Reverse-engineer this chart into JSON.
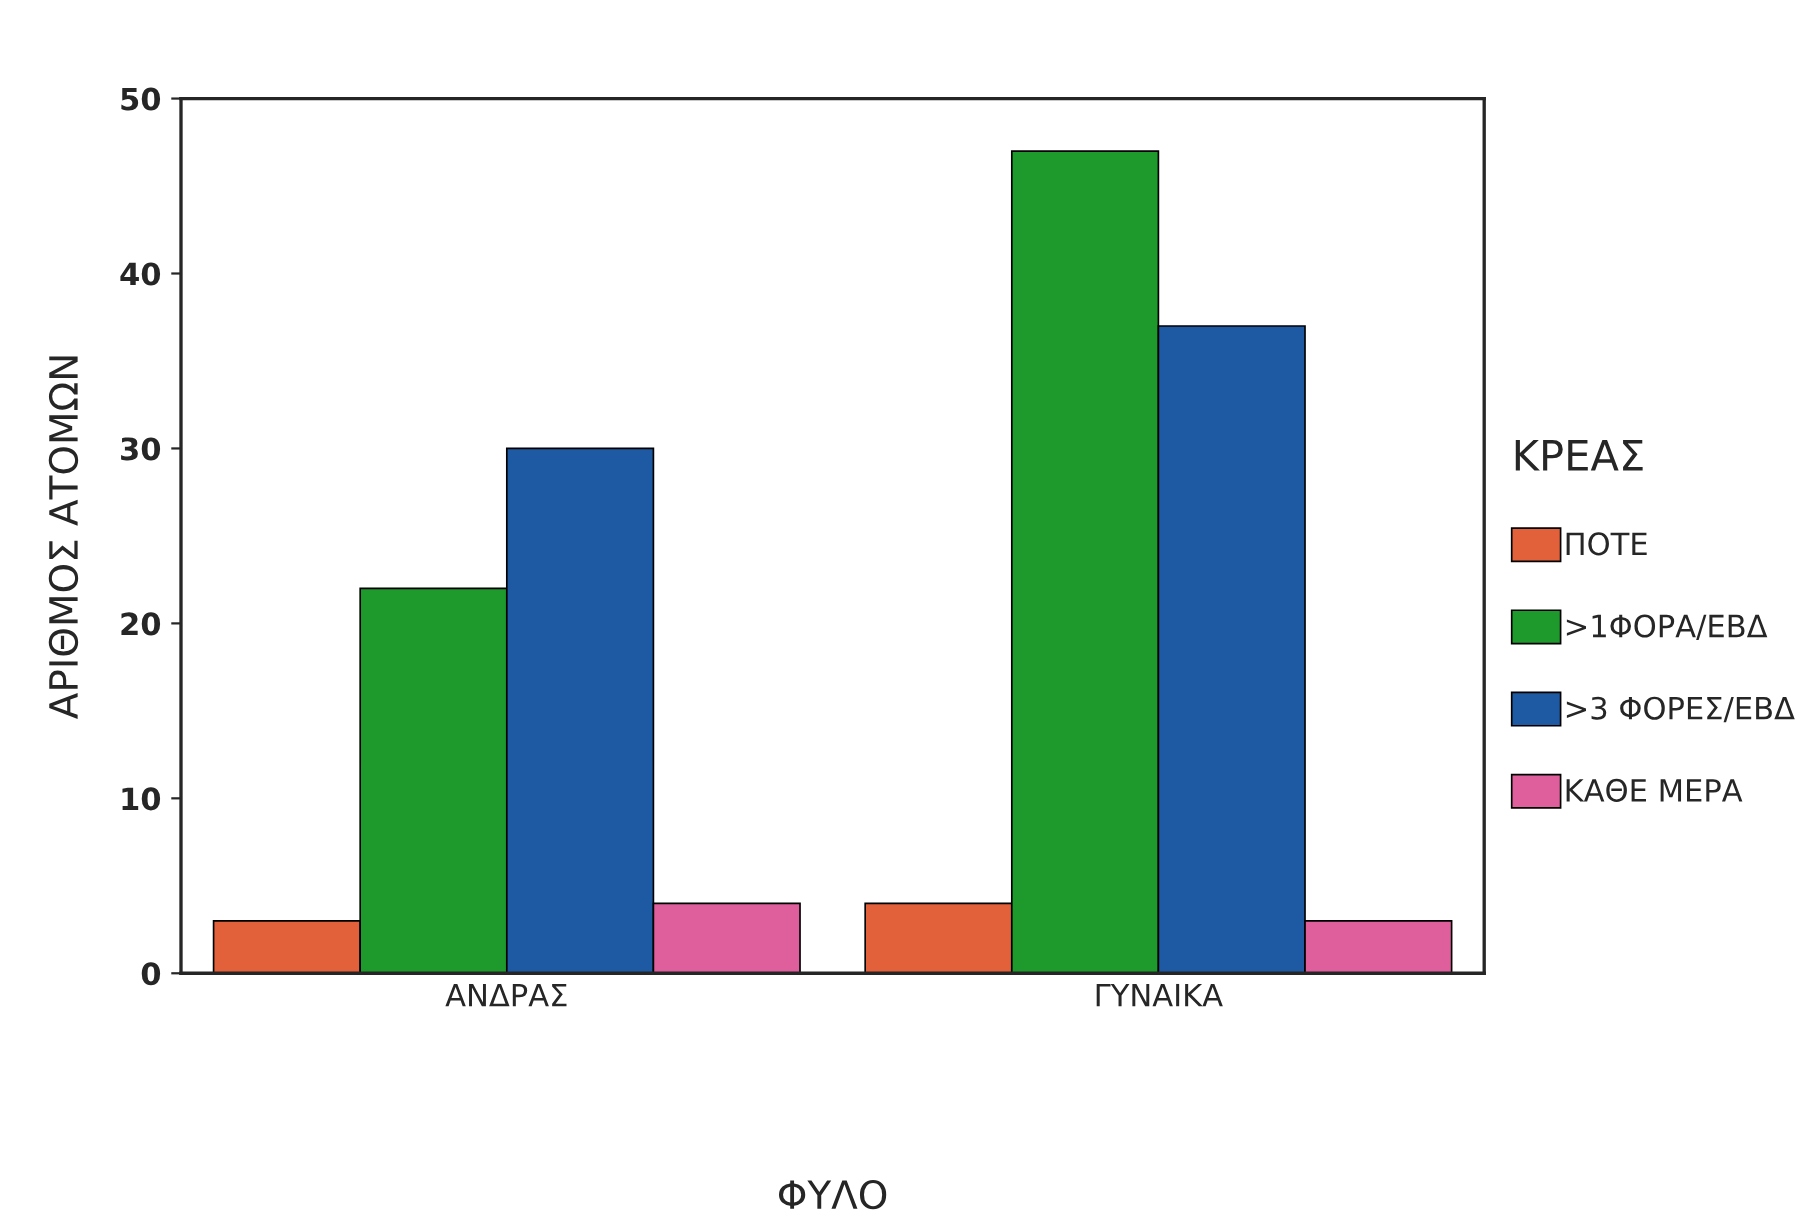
{
  "chart_data": {
    "type": "bar",
    "xlabel": "ΦΥΛΟ",
    "ylabel": "ΑΡΙΘΜΟΣ ΑΤΟΜΩΝ",
    "legend_title": "ΚΡΕΑΣ",
    "categories": [
      "ΑΝΔΡΑΣ",
      "ΓΥΝΑΙΚΑ"
    ],
    "series": [
      {
        "name": "ΠΟΤΕ",
        "color": "#e2603a",
        "values": [
          3,
          4
        ]
      },
      {
        "name": ">1ΦΟΡΑ/ΕΒΔ",
        "color": "#1e9a2c",
        "values": [
          22,
          47
        ]
      },
      {
        "name": ">3 ΦΟΡΕΣ/ΕΒΔ",
        "color": "#1d5aa3",
        "values": [
          30,
          37
        ]
      },
      {
        "name": "ΚΑΘΕ ΜΕΡΑ",
        "color": "#df5f9c",
        "values": [
          4,
          3
        ]
      }
    ],
    "ylim": [
      0,
      50
    ],
    "yticks": [
      0,
      10,
      20,
      30,
      40,
      50
    ],
    "grid": false,
    "legend": "right"
  }
}
